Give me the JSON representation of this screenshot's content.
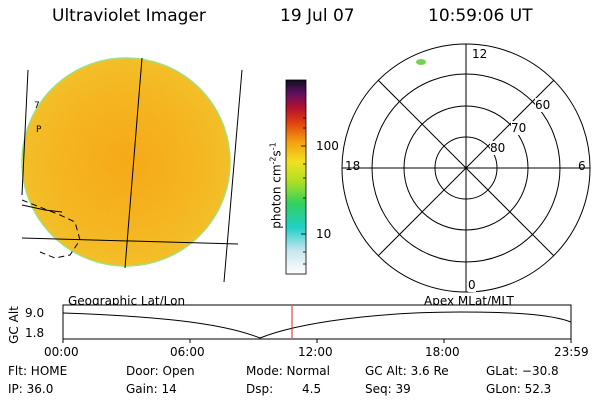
{
  "header": {
    "title": "Ultraviolet Imager",
    "date": "19 Jul 07",
    "time": "10:59:06 UT"
  },
  "colorbar": {
    "ylabel": "photon cm",
    "ylabel_sup1": "-2",
    "ylabel_mid": "s",
    "ylabel_sup2": "-1",
    "ticks": [
      "100",
      "10"
    ]
  },
  "left_map": {
    "left_marker": "P",
    "caption": "Geographic Lat/Lon"
  },
  "polar_plot": {
    "caption": "Apex MLat/MLT",
    "hour_labels": {
      "top": "12",
      "left": "18",
      "right": "6",
      "bottom": "0"
    },
    "lat_labels": [
      "60",
      "70",
      "80"
    ]
  },
  "orbit_plot": {
    "ylabel": "GC Alt",
    "yticks": [
      "9.0",
      "1.8"
    ],
    "xticks": [
      "00:00",
      "06:00",
      "12:00",
      "18:00",
      "23:59"
    ]
  },
  "footer": {
    "row1": {
      "flt": "Flt: HOME",
      "door": "Door: Open",
      "mode": "Mode: Normal",
      "gcalt": "GC Alt: 3.6 Re",
      "glat": "GLat: −30.8"
    },
    "row2": {
      "ip": "IP: 36.0",
      "gain": "Gain: 14",
      "dsp_label": "Dsp:",
      "dsp_value": "4.5",
      "seq": "Seq: 39",
      "glon": "GLon: 52.3"
    }
  },
  "colors": {
    "disk_fill": "#f4b01a",
    "disk_edge": "#9fe07a",
    "marker": "#7ad050",
    "time_marker": "#e02020"
  }
}
